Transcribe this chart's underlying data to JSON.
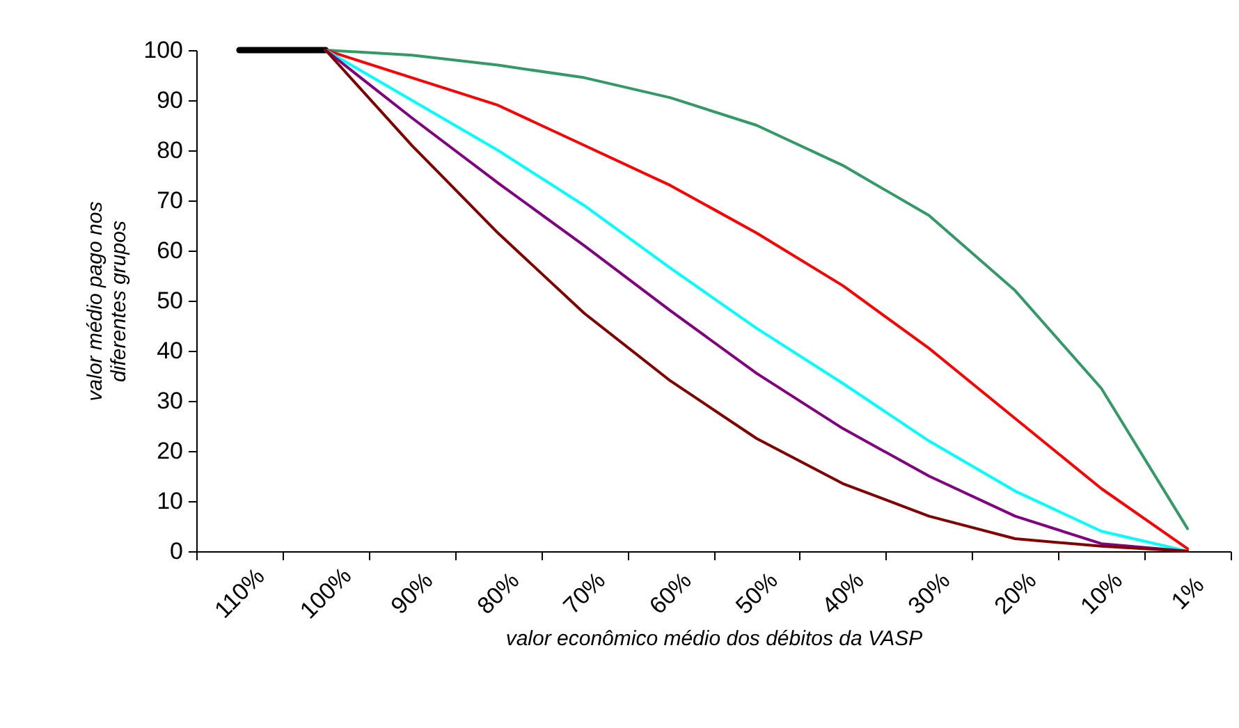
{
  "chart_data": {
    "type": "line",
    "xlabel": "valor econômico médio dos débitos da VASP",
    "ylabel": "valor médio pago nos diferentes grupos",
    "categories": [
      "110%",
      "100%",
      "90%",
      "80%",
      "70%",
      "60%",
      "50%",
      "40%",
      "30%",
      "20%",
      "10%",
      "1%"
    ],
    "series": [
      {
        "color": "#000000",
        "values": [
          100,
          100,
          null,
          null,
          null,
          null,
          null,
          null,
          null,
          null,
          null,
          null
        ]
      },
      {
        "color": "#339966",
        "values": [
          null,
          100,
          99,
          97,
          94.5,
          90.5,
          85,
          77,
          67,
          52,
          32.5,
          4.5
        ]
      },
      {
        "color": "#ff0000",
        "values": [
          null,
          100,
          94.5,
          89,
          81,
          73,
          63.5,
          53,
          40.5,
          26.5,
          12.5,
          0.5
        ]
      },
      {
        "color": "#00ffff",
        "values": [
          null,
          100,
          90,
          80,
          69,
          56.5,
          44.5,
          33.5,
          22,
          12,
          4,
          0
        ]
      },
      {
        "color": "#800080",
        "values": [
          null,
          100,
          86.5,
          73.5,
          61,
          48,
          35.5,
          24.5,
          15,
          7,
          1.5,
          0
        ]
      },
      {
        "color": "#800000",
        "values": [
          null,
          100,
          81,
          63.5,
          47.5,
          34,
          22.5,
          13.5,
          7,
          2.5,
          1,
          0
        ]
      }
    ],
    "ylim": [
      0,
      100
    ],
    "yticks": [
      0,
      10,
      20,
      30,
      40,
      50,
      60,
      70,
      80,
      90,
      100
    ],
    "grid": false,
    "marker": "none",
    "line_style": "solid"
  }
}
